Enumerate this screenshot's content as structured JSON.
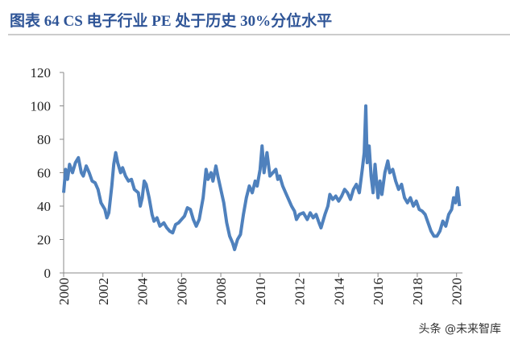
{
  "chart_data": {
    "type": "line",
    "title": "图表 64 CS 电子行业 PE 处于历史 30%分位水平",
    "watermark": "头条 @未来智库",
    "x": [
      2000.0,
      2000.1,
      2000.2,
      2000.3,
      2000.45,
      2000.6,
      2000.75,
      2000.9,
      2001.0,
      2001.15,
      2001.3,
      2001.45,
      2001.6,
      2001.75,
      2001.9,
      2002.0,
      2002.1,
      2002.2,
      2002.3,
      2002.45,
      2002.55,
      2002.65,
      2002.75,
      2002.9,
      2003.0,
      2003.15,
      2003.3,
      2003.45,
      2003.6,
      2003.8,
      2003.9,
      2004.0,
      2004.1,
      2004.2,
      2004.35,
      2004.5,
      2004.6,
      2004.75,
      2004.9,
      2005.1,
      2005.25,
      2005.4,
      2005.55,
      2005.7,
      2005.85,
      2006.0,
      2006.15,
      2006.3,
      2006.45,
      2006.6,
      2006.75,
      2006.9,
      2007.1,
      2007.25,
      2007.35,
      2007.5,
      2007.6,
      2007.75,
      2007.85,
      2008.0,
      2008.15,
      2008.3,
      2008.45,
      2008.6,
      2008.7,
      2008.85,
      2009.0,
      2009.15,
      2009.3,
      2009.45,
      2009.6,
      2009.75,
      2009.85,
      2010.0,
      2010.1,
      2010.2,
      2010.35,
      2010.5,
      2010.65,
      2010.8,
      2010.9,
      2011.0,
      2011.15,
      2011.3,
      2011.45,
      2011.6,
      2011.75,
      2011.85,
      2012.0,
      2012.2,
      2012.4,
      2012.55,
      2012.7,
      2012.85,
      2013.0,
      2013.1,
      2013.3,
      2013.45,
      2013.55,
      2013.7,
      2013.85,
      2014.0,
      2014.15,
      2014.3,
      2014.45,
      2014.6,
      2014.75,
      2014.9,
      2015.05,
      2015.2,
      2015.3,
      2015.38,
      2015.45,
      2015.55,
      2015.65,
      2015.75,
      2015.85,
      2016.0,
      2016.1,
      2016.2,
      2016.35,
      2016.5,
      2016.6,
      2016.75,
      2016.9,
      2017.05,
      2017.2,
      2017.35,
      2017.5,
      2017.65,
      2017.8,
      2017.95,
      2018.1,
      2018.25,
      2018.4,
      2018.55,
      2018.7,
      2018.85,
      2019.0,
      2019.15,
      2019.3,
      2019.45,
      2019.6,
      2019.75,
      2019.85,
      2019.95,
      2020.05,
      2020.15
    ],
    "series": [
      {
        "color": "#4f81bd",
        "values": [
          48,
          62,
          56,
          65,
          60,
          66,
          69,
          60,
          58,
          64,
          60,
          55,
          54,
          50,
          42,
          40,
          38,
          33,
          36,
          52,
          65,
          72,
          66,
          60,
          63,
          58,
          55,
          56,
          50,
          48,
          40,
          45,
          55,
          53,
          45,
          35,
          31,
          33,
          28,
          30,
          27,
          25,
          24,
          29,
          30,
          32,
          34,
          39,
          38,
          32,
          28,
          32,
          45,
          62,
          56,
          60,
          55,
          64,
          58,
          50,
          42,
          30,
          22,
          18,
          14,
          20,
          23,
          35,
          45,
          52,
          48,
          55,
          52,
          62,
          76,
          60,
          72,
          58,
          60,
          62,
          56,
          58,
          52,
          48,
          44,
          40,
          37,
          32,
          35,
          36,
          32,
          36,
          33,
          35,
          30,
          27,
          35,
          40,
          47,
          44,
          46,
          43,
          46,
          50,
          48,
          44,
          50,
          53,
          48,
          62,
          72,
          100,
          66,
          76,
          58,
          48,
          65,
          45,
          55,
          47,
          60,
          67,
          60,
          62,
          55,
          50,
          53,
          45,
          42,
          45,
          40,
          43,
          38,
          37,
          35,
          30,
          25,
          22,
          22,
          25,
          31,
          28,
          35,
          38,
          45,
          42,
          51,
          40
        ]
      }
    ],
    "xlim": [
      2000,
      2020.3
    ],
    "xticks": [
      2000,
      2002,
      2004,
      2006,
      2008,
      2010,
      2012,
      2014,
      2016,
      2018,
      2020
    ],
    "ylim": [
      0,
      120
    ],
    "yticks": [
      0,
      20,
      40,
      60,
      80,
      100,
      120
    ]
  }
}
